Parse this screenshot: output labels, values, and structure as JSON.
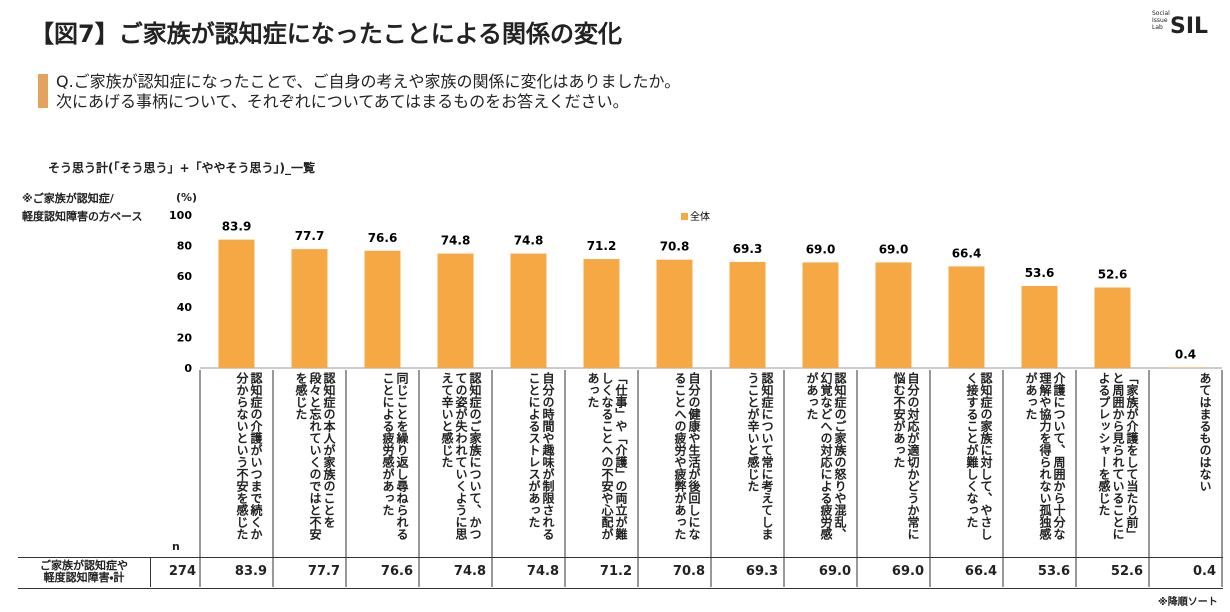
{
  "title": "【図7】ご家族が認知症になったことによる関係の変化",
  "logo": {
    "small": [
      "Social",
      "Issue",
      "Lab"
    ],
    "name": "SIL"
  },
  "question": [
    "Q.ご家族が認知症になったことで、ご自身の考えや家族の関係に変化はありましたか。",
    "次にあげる事柄について、それぞれについてあてはまるものをお答えください。"
  ],
  "base_note": [
    "※ご家族が認知症/",
    "軽度認知障害の方ベース"
  ],
  "n_label": "n",
  "table_row": {
    "label": [
      "ご家族が認知症や",
      "軽度認知障害・計"
    ],
    "n": 274
  },
  "footnote": "※降順ソート",
  "chart_data": {
    "type": "bar",
    "subtitle": "そう思う計(「そう思う」+「ややそう思う」)_一覧",
    "y_label": "(%)",
    "categories": [
      "認知症の介護がいつまで続くか分からないという不安を感じた",
      "認知症の本人が家族のことを段々と忘れていくのではと不安を感じた",
      "同じことを繰り返し尋ねられることによる疲労感があった",
      "認知症のご家族について、かつての姿が失われていくように思えて辛いと感じた",
      "自分の時間や趣味が制限されることによるストレスがあった",
      "「仕事」や「介護」の両立が難しくなることへの不安や心配があった",
      "自分の健康や生活が後回しになることへの疲労や疲弊があった",
      "認知症について常に考えてしまうことが辛いと感じた",
      "認知症のご家族の怒りや混乱、幻覚などへの対応による疲労感があった",
      "自分の対応が適切かどうか常に悩む不安があった",
      "認知症の家族に対して、やさしく接することが難しくなった",
      "介護について、周囲から十分な理解や協力を得られない孤独感があった",
      "「家族が介護をして当たり前」と周囲から見られていることによるプレッシャーを感じた",
      "あてはまるものはない"
    ],
    "series": [
      {
        "name": "全体",
        "color": "#f5a843",
        "values": [
          83.9,
          77.7,
          76.6,
          74.8,
          74.8,
          71.2,
          70.8,
          69.3,
          69.0,
          69.0,
          66.4,
          53.6,
          52.6,
          0.4
        ],
        "value_labels": [
          "83.9",
          "77.7",
          "76.6",
          "74.8",
          "74.8",
          "71.2",
          "70.8",
          "69.3",
          "69.0",
          "69.0",
          "66.4",
          "53.6",
          "52.6",
          "0.4"
        ]
      }
    ],
    "ylim": [
      0,
      100
    ],
    "yticks": [
      0,
      20,
      40,
      60,
      80,
      100
    ],
    "grid": false
  }
}
